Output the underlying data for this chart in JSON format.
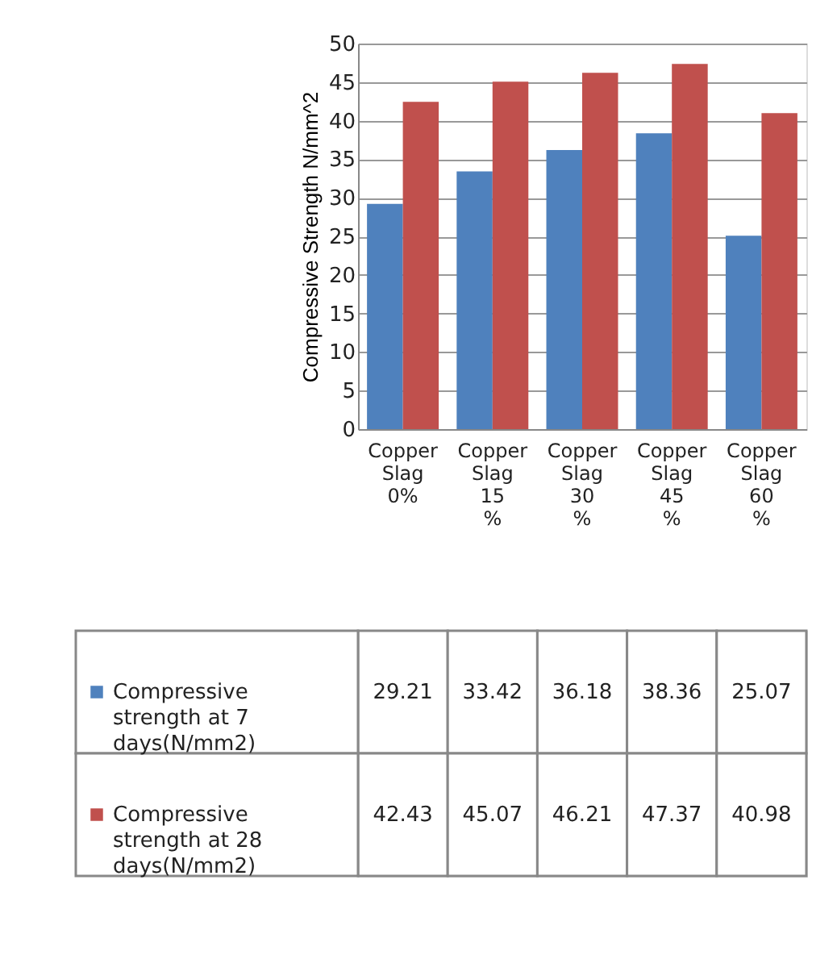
{
  "chart_data": {
    "type": "bar",
    "ylabel": "Compressive Strength N/mm^2",
    "categories": [
      "Copper Slag 0%",
      "Copper Slag 15 %",
      "Copper Slag 30 %",
      "Copper Slag 45 %",
      "Copper Slag 60 %"
    ],
    "series": [
      {
        "name": "Compressive strength at 7 days(N/mm2)",
        "color": "#4f81bd",
        "values": [
          29.21,
          33.42,
          36.18,
          38.36,
          25.07
        ]
      },
      {
        "name": "Compressive strength at 28 days(N/mm2)",
        "color": "#c0504d",
        "values": [
          42.43,
          45.07,
          46.21,
          47.37,
          40.98
        ]
      }
    ],
    "ylim": [
      0,
      50
    ],
    "yticks": [
      0,
      5,
      10,
      15,
      20,
      25,
      30,
      35,
      40,
      45,
      50
    ],
    "grid": "y",
    "legend": "bottom",
    "data_labels": true
  }
}
